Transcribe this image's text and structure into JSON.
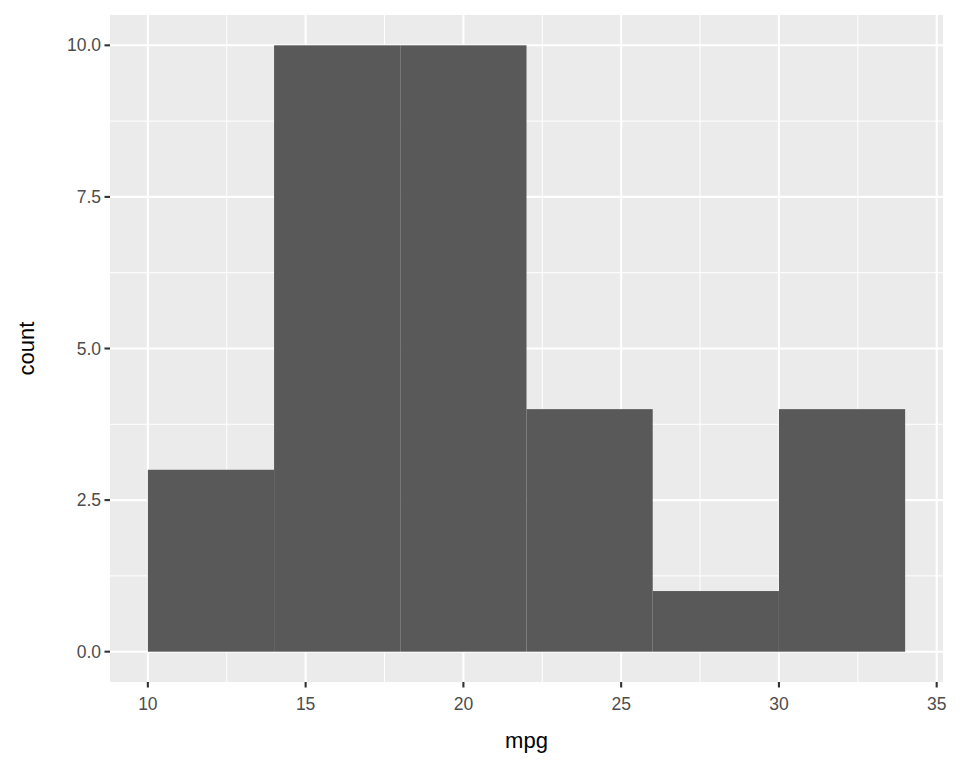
{
  "chart_data": {
    "type": "histogram",
    "x_label": "mpg",
    "y_label": "count",
    "bins": [
      10,
      14,
      18,
      22,
      26,
      30,
      34
    ],
    "values": [
      3,
      10,
      10,
      4,
      1,
      4
    ],
    "color": "#595959",
    "xlim": [
      8.8,
      35.2
    ],
    "xticks": [
      10,
      15,
      20,
      25,
      30,
      35
    ],
    "ylim": [
      -0.5,
      10.5
    ],
    "yticks": [
      {
        "value": 0,
        "label": "0.0"
      },
      2.5,
      {
        "value": 5,
        "label": "5.0"
      },
      7.5,
      {
        "value": 10,
        "label": "10.0"
      }
    ],
    "grid": true
  }
}
